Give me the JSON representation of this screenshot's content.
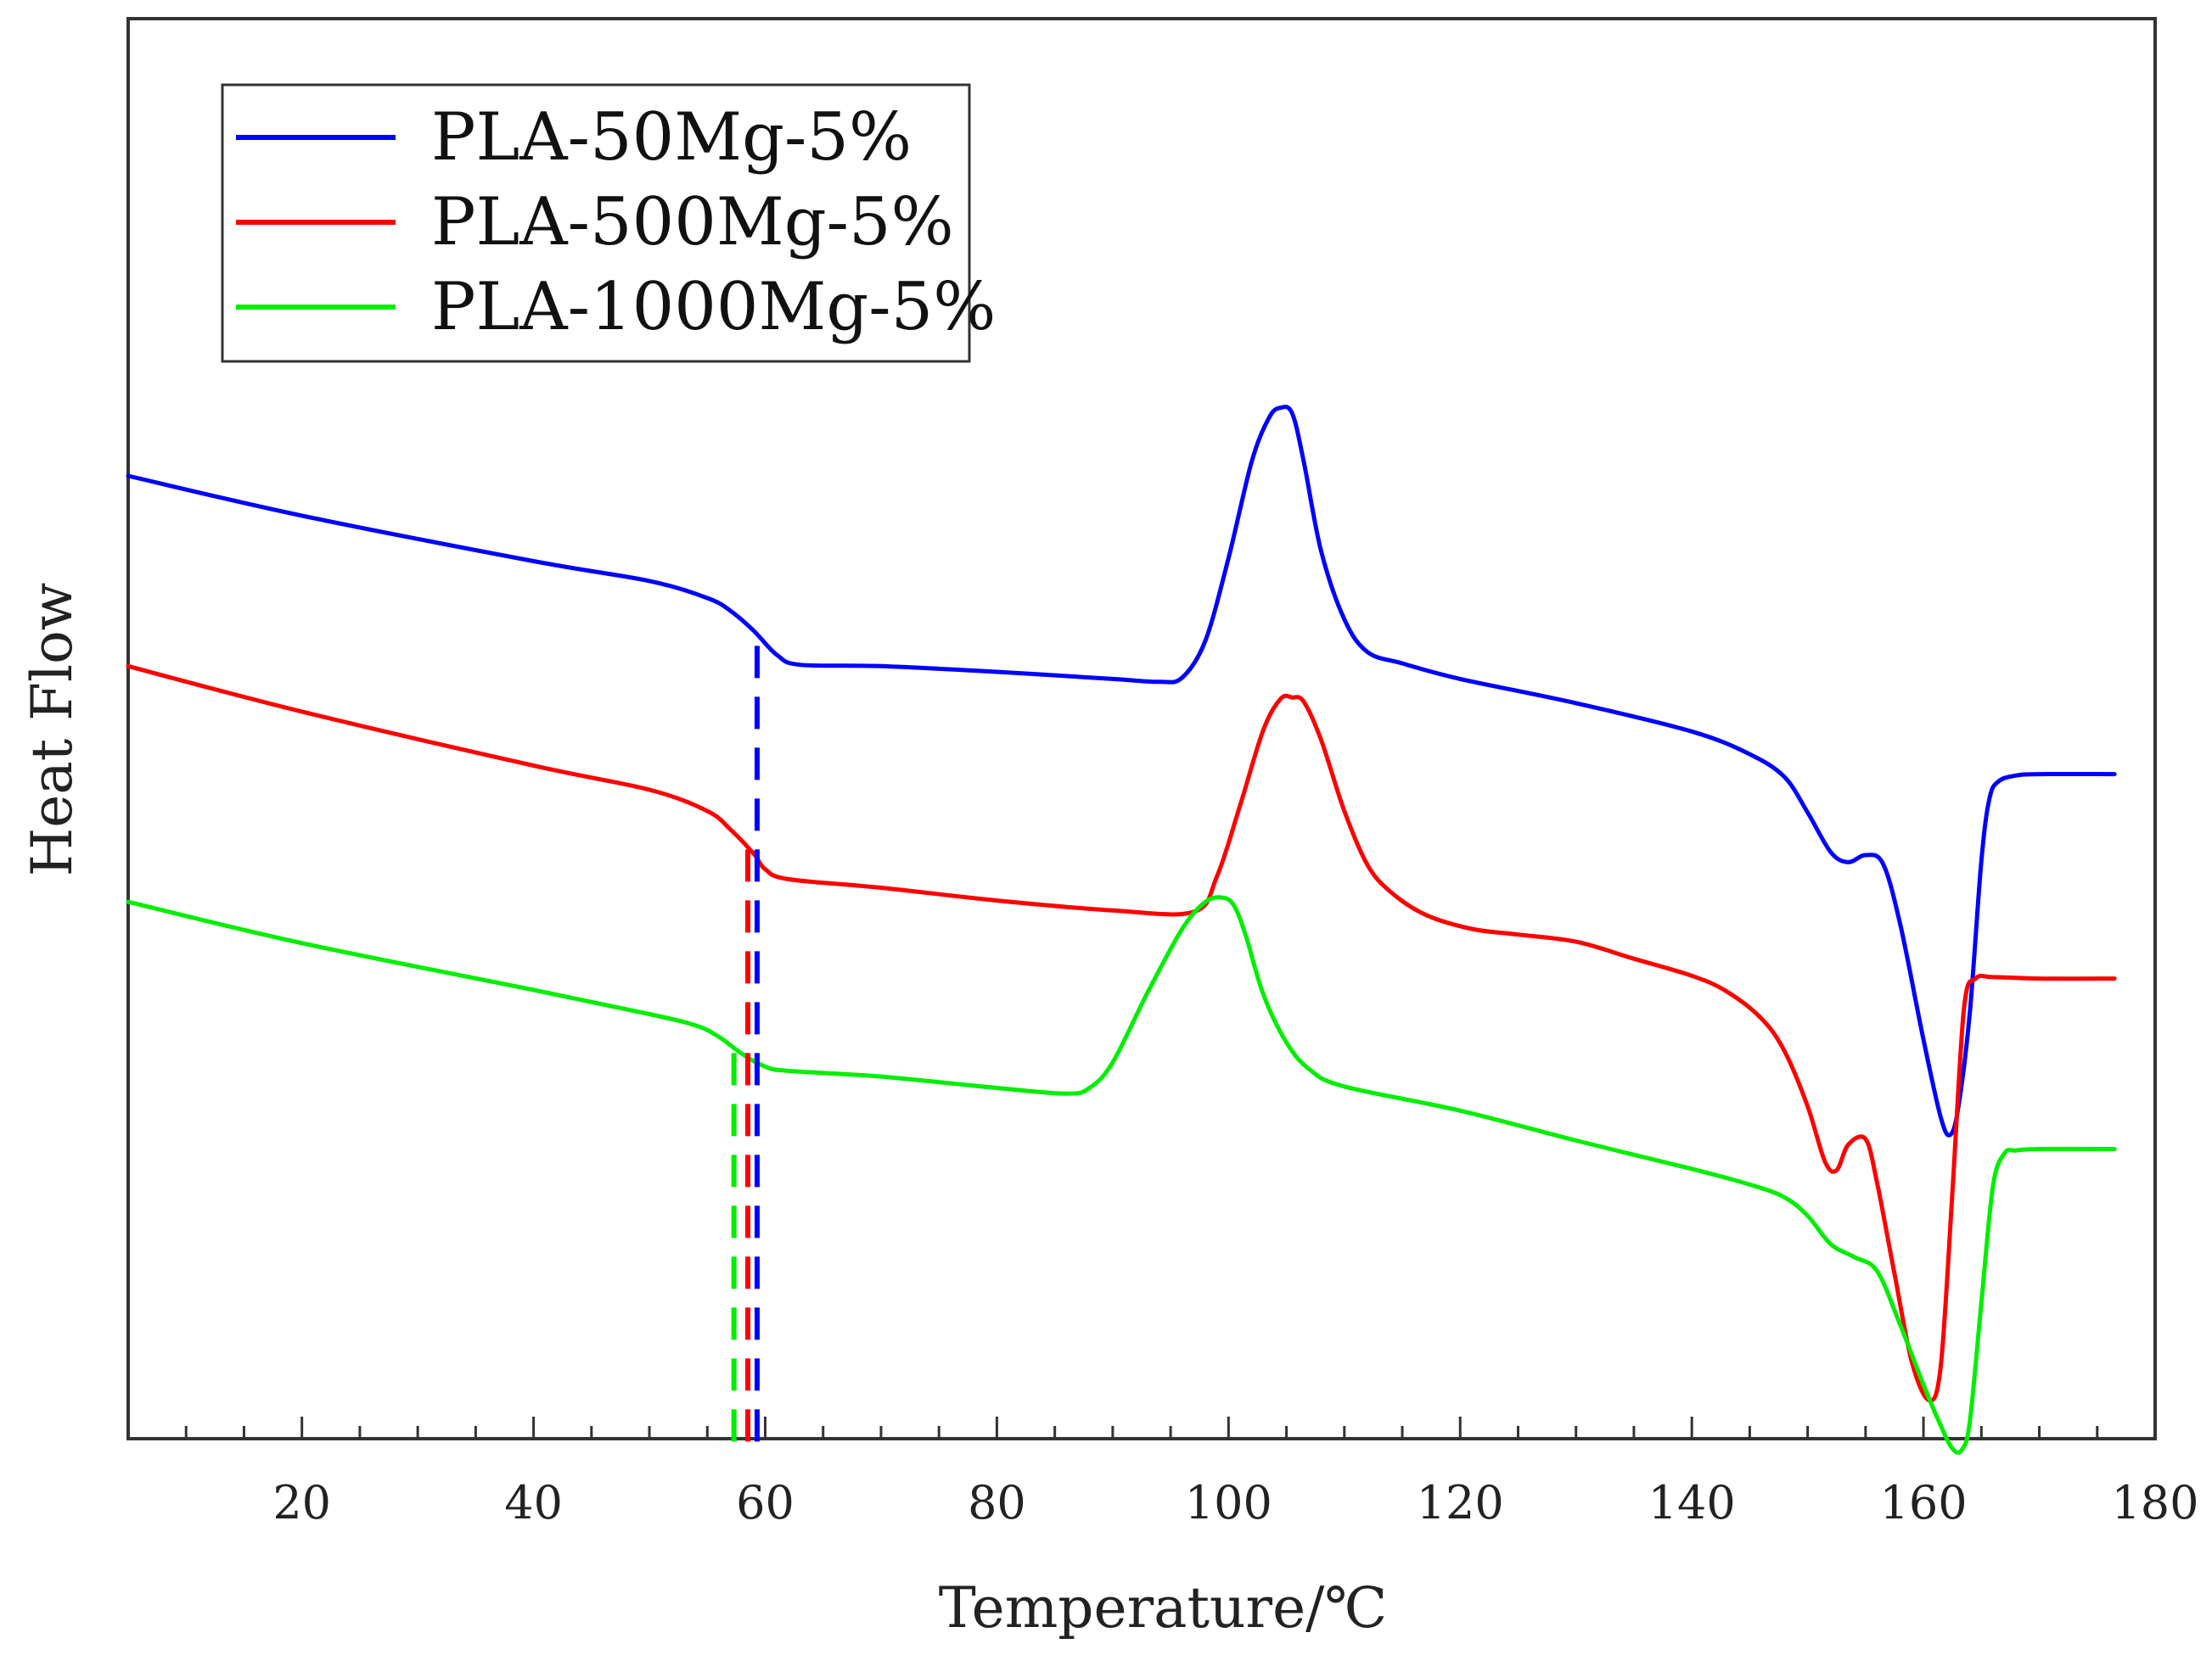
{
  "chart_data": {
    "type": "line",
    "title": "",
    "xlabel": "Temperature/℃",
    "ylabel": "Heat Flow",
    "xlim": [
      5,
      180
    ],
    "ylim": [
      0,
      100
    ],
    "xticks": [
      20,
      40,
      60,
      80,
      100,
      120,
      140,
      160,
      180
    ],
    "x_minor_step": 5,
    "yticks_shown": false,
    "grid": false,
    "legend_position": "top-left",
    "series": [
      {
        "name": "PLA-50Mg-5%",
        "color": "#0000ff",
        "x": [
          5,
          20,
          40,
          50,
          55,
          57,
          59,
          61,
          63,
          70,
          80,
          90,
          94,
          96,
          98,
          100,
          102,
          103.5,
          104.5,
          105.5,
          106.5,
          108,
          110,
          112,
          115,
          120,
          130,
          140,
          145,
          148,
          150,
          152,
          153.5,
          155,
          156.5,
          158,
          160,
          161.5,
          162.3,
          163,
          164,
          165,
          165.7,
          166.5,
          168,
          170,
          176.5
        ],
        "y": [
          67.8,
          65.0,
          61.8,
          60.4,
          59.2,
          58.3,
          56.9,
          55.2,
          54.5,
          54.4,
          54.0,
          53.5,
          53.3,
          53.6,
          56.2,
          62.0,
          68.8,
          71.9,
          72.6,
          72.2,
          68.8,
          62.5,
          57.7,
          55.4,
          54.6,
          53.5,
          51.8,
          49.8,
          48.2,
          46.6,
          44.1,
          41.3,
          40.6,
          41.1,
          40.5,
          36.2,
          28.1,
          22.6,
          21.4,
          23.3,
          30.0,
          40.7,
          45.1,
          46.3,
          46.7,
          46.8,
          46.8
        ]
      },
      {
        "name": "PLA-500Mg-5%",
        "color": "#ff0000",
        "x": [
          5,
          20,
          40,
          50,
          55,
          57,
          59,
          60,
          62,
          70,
          80,
          90,
          97,
          99,
          101,
          103,
          104.5,
          105.5,
          106.5,
          108,
          110,
          112,
          114,
          117,
          121,
          125,
          130,
          135,
          140,
          143,
          146,
          148,
          150,
          151.5,
          152.5,
          153.5,
          155,
          156,
          157.5,
          159,
          160.5,
          161.5,
          162.5,
          163.5,
          164.5,
          166,
          170,
          176.5
        ],
        "y": [
          54.4,
          51.2,
          47.4,
          45.7,
          44.2,
          42.9,
          41.2,
          40.1,
          39.4,
          38.8,
          37.9,
          37.2,
          37.1,
          39.6,
          44.6,
          49.9,
          52.1,
          52.2,
          51.9,
          49.2,
          44.2,
          40.4,
          38.5,
          36.9,
          35.9,
          35.5,
          35.0,
          33.8,
          32.6,
          31.5,
          29.6,
          27.3,
          23.4,
          19.5,
          18.9,
          20.7,
          21.1,
          18.0,
          11.6,
          5.4,
          2.7,
          5.2,
          17.4,
          30.3,
          32.4,
          32.5,
          32.4,
          32.4
        ]
      },
      {
        "name": "PLA-1000Mg-5%",
        "color": "#00ee00",
        "x": [
          5,
          20,
          40,
          50,
          54,
          56,
          58,
          60,
          62,
          70,
          80,
          86,
          88,
          90,
          93,
          96,
          98,
          99.5,
          100.5,
          101.5,
          103,
          105,
          107,
          110,
          120,
          130,
          140,
          145,
          148,
          150,
          152,
          154,
          156,
          158,
          160,
          161.5,
          162.5,
          163.3,
          164,
          165,
          166,
          167,
          168,
          170,
          176.5
        ],
        "y": [
          37.8,
          34.9,
          31.6,
          29.9,
          29.1,
          28.3,
          27.1,
          26.2,
          25.9,
          25.5,
          24.7,
          24.3,
          24.7,
          26.5,
          31.4,
          35.9,
          37.8,
          38.1,
          37.5,
          35.4,
          31.3,
          27.9,
          26.0,
          24.8,
          23.1,
          21.0,
          19.0,
          17.9,
          17.0,
          15.7,
          13.7,
          12.8,
          11.8,
          8.0,
          3.8,
          0.9,
          -0.7,
          -0.8,
          1.2,
          9.6,
          17.8,
          20.1,
          20.3,
          20.4,
          20.4
        ]
      }
    ],
    "annotations": [
      {
        "type": "vertical-dashed-line",
        "series": "PLA-50Mg-5%",
        "x": 59.3,
        "y_from": -0.2,
        "y_to": 57.1
      },
      {
        "type": "vertical-dashed-line",
        "series": "PLA-500Mg-5%",
        "x": 58.5,
        "y_from": -0.2,
        "y_to": 41.6
      },
      {
        "type": "vertical-dashed-line",
        "series": "PLA-1000Mg-5%",
        "x": 57.3,
        "y_from": -0.2,
        "y_to": 27.7
      }
    ]
  }
}
